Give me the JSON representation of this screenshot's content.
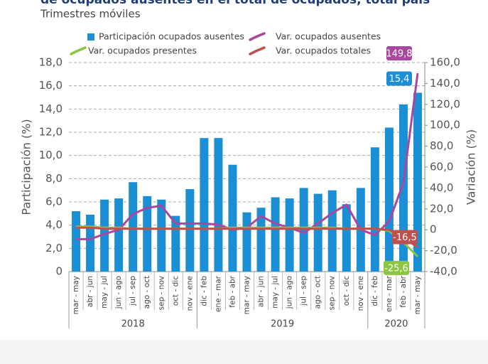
{
  "chart_data": {
    "type": "bar",
    "title": "de ocupados ausentes en el total de ocupados, total país",
    "subtitle": "Trimestres móviles",
    "ylabel": "Participación (%)",
    "y2label": "Variación (%)",
    "categories": [
      "mar - may",
      "abr - jun",
      "may - jul",
      "jun - ago",
      "jul - sep",
      "ago - oct",
      "sep - nov",
      "oct - dic",
      "nov - ene",
      "dic - feb",
      "ene - mar",
      "feb - abr",
      "mar - may",
      "abr - jun",
      "may - jul",
      "jun - ago",
      "jul - sep",
      "ago - oct",
      "sep - nov",
      "oct - dic",
      "nov - ene",
      "dic - feb",
      "ene - mar",
      "feb - abr",
      "mar - may"
    ],
    "groups": [
      {
        "name": "2018",
        "count": 9
      },
      {
        "name": "2019",
        "count": 12
      },
      {
        "name": "2020",
        "count": 4
      }
    ],
    "ylim": [
      0,
      18
    ],
    "yticks": [
      {
        "value": 0,
        "label": "0"
      },
      {
        "value": 2,
        "label": "2,0"
      },
      {
        "value": 4,
        "label": "4,0"
      },
      {
        "value": 6,
        "label": "6,0"
      },
      {
        "value": 8,
        "label": "8,0"
      },
      {
        "value": 10,
        "label": "10,0"
      },
      {
        "value": 12,
        "label": "12,0"
      },
      {
        "value": 14,
        "label": "14,0"
      },
      {
        "value": 16,
        "label": "16,0"
      },
      {
        "value": 18,
        "label": "18,0"
      }
    ],
    "y2lim": [
      -40,
      160
    ],
    "y2ticks": [
      {
        "value": -40,
        "label": "-40,0"
      },
      {
        "value": -20,
        "label": "-20,0"
      },
      {
        "value": 0,
        "label": "0"
      },
      {
        "value": 20,
        "label": "20,0"
      },
      {
        "value": 40,
        "label": "40,0"
      },
      {
        "value": 60,
        "label": "60,0"
      },
      {
        "value": 80,
        "label": "80,0"
      },
      {
        "value": 100,
        "label": "100,0"
      },
      {
        "value": 120,
        "label": "120,0"
      },
      {
        "value": 140,
        "label": "140,0"
      },
      {
        "value": 160,
        "label": "160,0"
      }
    ],
    "grid": true,
    "series": [
      {
        "name": "Participación ocupados ausentes",
        "type": "bar",
        "color": "#1a8fd6",
        "values": [
          5.2,
          4.9,
          6.2,
          6.3,
          7.7,
          6.5,
          6.2,
          4.8,
          7.1,
          11.5,
          11.5,
          9.2,
          5.1,
          5.5,
          6.4,
          6.3,
          7.2,
          6.7,
          7.0,
          5.8,
          7.2,
          10.7,
          12.4,
          14.4,
          15.4
        ],
        "value_labels": [
          null,
          null,
          null,
          null,
          null,
          null,
          null,
          null,
          null,
          null,
          null,
          null,
          null,
          null,
          null,
          null,
          null,
          null,
          null,
          null,
          null,
          null,
          null,
          null,
          "15,4"
        ]
      },
      {
        "name": "Var. ocupados ausentes",
        "type": "line",
        "axis": "y2",
        "color": "#a8479e",
        "values": [
          -9,
          -9,
          -4,
          0,
          15,
          21,
          23,
          6,
          6,
          6,
          5,
          0,
          2,
          13,
          6,
          2,
          -3,
          6,
          16,
          24,
          0,
          -5,
          8,
          45,
          149.8
        ],
        "value_labels": [
          null,
          null,
          null,
          null,
          null,
          null,
          null,
          null,
          null,
          null,
          null,
          null,
          null,
          null,
          null,
          null,
          null,
          null,
          null,
          null,
          null,
          null,
          null,
          null,
          "149,8"
        ]
      },
      {
        "name": "Var. ocupados presentes",
        "type": "line",
        "axis": "y2",
        "color": "#8cc63f",
        "values": [
          3,
          3,
          2,
          2,
          1,
          1,
          1,
          1,
          1,
          1,
          1,
          2,
          2,
          2,
          2,
          2,
          2,
          2,
          2,
          1,
          1,
          1,
          -1,
          -12,
          -25.6
        ],
        "value_labels": [
          null,
          null,
          null,
          null,
          null,
          null,
          null,
          null,
          null,
          null,
          null,
          null,
          null,
          null,
          null,
          null,
          null,
          null,
          null,
          null,
          null,
          null,
          null,
          null,
          "-25,6"
        ]
      },
      {
        "name": "Var. ocupados totales",
        "type": "line",
        "axis": "y2",
        "color": "#c0504d",
        "values": [
          2,
          2,
          1,
          1,
          1,
          1,
          1,
          1,
          1,
          1,
          1,
          1,
          1,
          1,
          1,
          1,
          1,
          1,
          1,
          1,
          1,
          1,
          0,
          -8,
          -16.5
        ],
        "value_labels": [
          null,
          null,
          null,
          null,
          null,
          null,
          null,
          null,
          null,
          null,
          null,
          null,
          null,
          null,
          null,
          null,
          null,
          null,
          null,
          null,
          null,
          null,
          null,
          null,
          "-16,5"
        ]
      }
    ]
  }
}
